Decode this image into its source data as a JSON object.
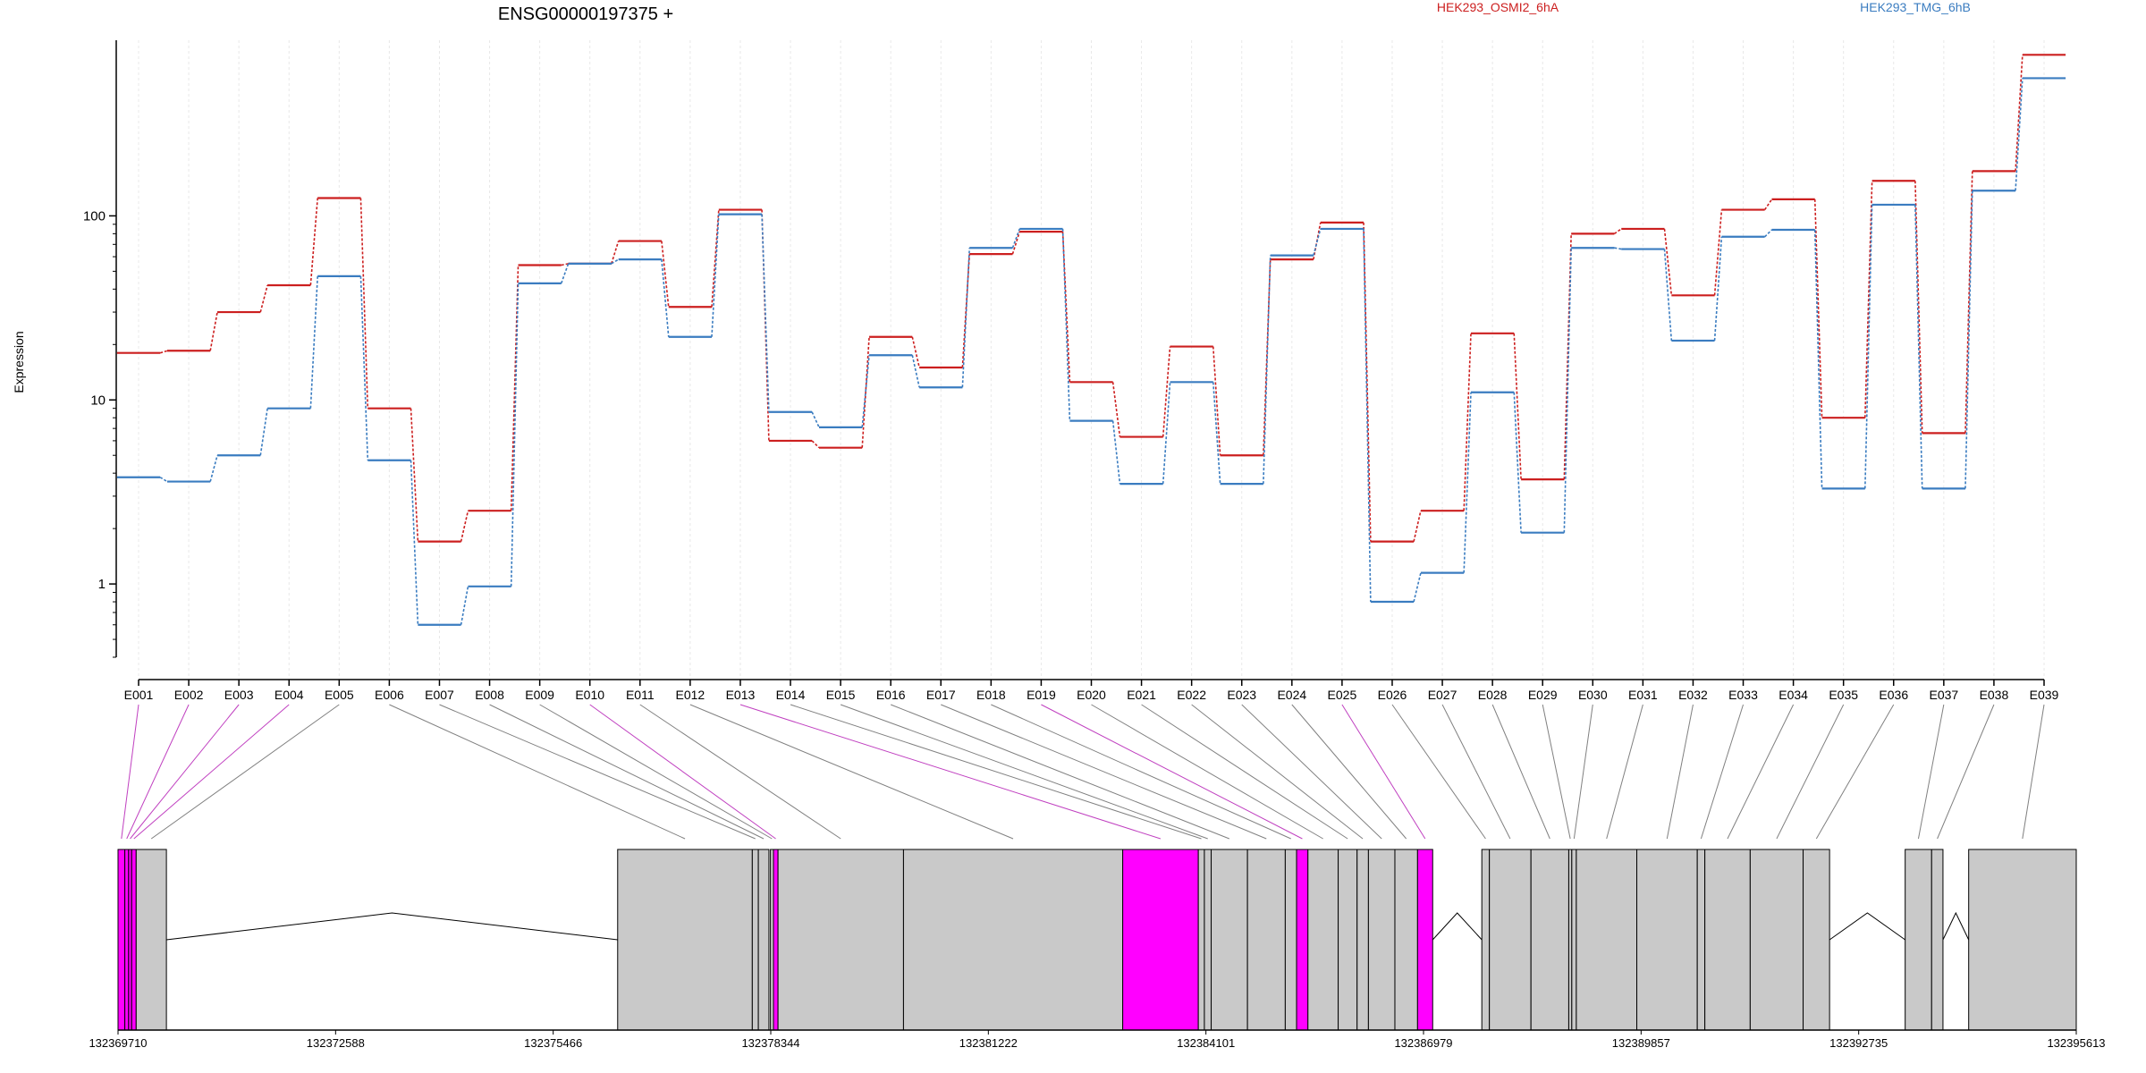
{
  "chart_data": {
    "type": "line",
    "title": "ENSG00000197375 +",
    "ylabel": "Expression",
    "xlabel": "",
    "yscale": "log",
    "ylim": [
      0.4,
      900
    ],
    "yticks": [
      1,
      10,
      100
    ],
    "categories": [
      "E001",
      "E002",
      "E003",
      "E004",
      "E005",
      "E006",
      "E007",
      "E008",
      "E009",
      "E010",
      "E011",
      "E012",
      "E013",
      "E014",
      "E015",
      "E016",
      "E017",
      "E018",
      "E019",
      "E020",
      "E021",
      "E022",
      "E023",
      "E024",
      "E025",
      "E026",
      "E027",
      "E028",
      "E029",
      "E030",
      "E031",
      "E032",
      "E033",
      "E034",
      "E035",
      "E036",
      "E037",
      "E038",
      "E039"
    ],
    "series": [
      {
        "name": "HEK293_OSMI2_6hA",
        "color": "#cc1f1f",
        "values": [
          18,
          18.5,
          30,
          42,
          125,
          9,
          1.7,
          2.5,
          54,
          55,
          73,
          32,
          108,
          6,
          5.5,
          22,
          15,
          62,
          82,
          12.5,
          6.3,
          19.5,
          5,
          58,
          92,
          1.7,
          2.5,
          23,
          3.7,
          80,
          85,
          37,
          108,
          123,
          8,
          155,
          6.6,
          175,
          750
        ]
      },
      {
        "name": "HEK293_TMG_6hB",
        "color": "#3a7cc0",
        "values": [
          3.8,
          3.6,
          5,
          9,
          47,
          4.7,
          0.6,
          0.97,
          43,
          55,
          58,
          22,
          102,
          8.6,
          7.1,
          17.5,
          11.7,
          67,
          85,
          7.7,
          3.5,
          12.5,
          3.5,
          61,
          85,
          0.8,
          1.15,
          11,
          1.9,
          67,
          66,
          21,
          77,
          84,
          3.3,
          115,
          3.3,
          137,
          560
        ]
      }
    ],
    "exon_colors": [
      "#ff00ff",
      "#ff00ff",
      "#ff00ff",
      "#ff00ff",
      "#c9c9c9",
      "#c9c9c9",
      "#c9c9c9",
      "#c9c9c9",
      "#c9c9c9",
      "#ff00ff",
      "#c9c9c9",
      "#c9c9c9",
      "#ff00ff",
      "#c9c9c9",
      "#c9c9c9",
      "#c9c9c9",
      "#c9c9c9",
      "#c9c9c9",
      "#ff00ff",
      "#c9c9c9",
      "#c9c9c9",
      "#c9c9c9",
      "#c9c9c9",
      "#c9c9c9",
      "#ff00ff",
      "#c9c9c9",
      "#c9c9c9",
      "#c9c9c9",
      "#c9c9c9",
      "#c9c9c9",
      "#c9c9c9",
      "#c9c9c9",
      "#c9c9c9",
      "#c9c9c9",
      "#c9c9c9",
      "#c9c9c9",
      "#c9c9c9",
      "#c9c9c9",
      "#c9c9c9"
    ],
    "gene_model": {
      "coord_ticks": [
        "132369710",
        "132372588",
        "132375466",
        "132378344",
        "132381222",
        "132384101",
        "132386979",
        "132389857",
        "132392735",
        "132395613"
      ],
      "start": 132369710,
      "end": 132395613,
      "exons": [
        {
          "id": "E001",
          "start": 132369710,
          "end": 132369800
        },
        {
          "id": "E002",
          "start": 132369800,
          "end": 132369850
        },
        {
          "id": "E003",
          "start": 132369850,
          "end": 132369890
        },
        {
          "id": "E004",
          "start": 132369890,
          "end": 132369950
        },
        {
          "id": "E005",
          "start": 132369950,
          "end": 132370350
        },
        {
          "id": "E006",
          "start": 132376319,
          "end": 132378100
        },
        {
          "id": "E007",
          "start": 132378100,
          "end": 132378180
        },
        {
          "id": "E008",
          "start": 132378180,
          "end": 132378320
        },
        {
          "id": "E009",
          "start": 132378340,
          "end": 132378380
        },
        {
          "id": "E010",
          "start": 132378380,
          "end": 132378440
        },
        {
          "id": "E011",
          "start": 132378440,
          "end": 132380100
        },
        {
          "id": "E012",
          "start": 132380100,
          "end": 132383000
        },
        {
          "id": "E013",
          "start": 132383000,
          "end": 132384000
        },
        {
          "id": "E014",
          "start": 132384000,
          "end": 132384080
        },
        {
          "id": "E015",
          "start": 132384080,
          "end": 132384170
        },
        {
          "id": "E016",
          "start": 132384170,
          "end": 132384650
        },
        {
          "id": "E017",
          "start": 132384650,
          "end": 132385150
        },
        {
          "id": "E018",
          "start": 132385150,
          "end": 132385300
        },
        {
          "id": "E019",
          "start": 132385300,
          "end": 132385450
        },
        {
          "id": "E020",
          "start": 132385450,
          "end": 132385850
        },
        {
          "id": "E021",
          "start": 132385850,
          "end": 132386100
        },
        {
          "id": "E022",
          "start": 132386100,
          "end": 132386250
        },
        {
          "id": "E023",
          "start": 132386250,
          "end": 132386600
        },
        {
          "id": "E024",
          "start": 132386600,
          "end": 132386900
        },
        {
          "id": "E025",
          "start": 132386900,
          "end": 132387100
        },
        {
          "id": "E026",
          "start": 132387750,
          "end": 132387850
        },
        {
          "id": "E027",
          "start": 132387850,
          "end": 132388400
        },
        {
          "id": "E028",
          "start": 132388400,
          "end": 132388900
        },
        {
          "id": "E029",
          "start": 132388900,
          "end": 132388940
        },
        {
          "id": "E030",
          "start": 132388940,
          "end": 132389000
        },
        {
          "id": "E031",
          "start": 132389000,
          "end": 132389800
        },
        {
          "id": "E032",
          "start": 132389800,
          "end": 132390600
        },
        {
          "id": "E033",
          "start": 132390600,
          "end": 132390700
        },
        {
          "id": "E034",
          "start": 132390700,
          "end": 132391300
        },
        {
          "id": "E035",
          "start": 132391300,
          "end": 132392000
        },
        {
          "id": "E036",
          "start": 132392000,
          "end": 132392350
        },
        {
          "id": "E037",
          "start": 132393350,
          "end": 132393700
        },
        {
          "id": "E038",
          "start": 132393700,
          "end": 132393850
        },
        {
          "id": "E039",
          "start": 132394190,
          "end": 132395613
        }
      ]
    }
  }
}
